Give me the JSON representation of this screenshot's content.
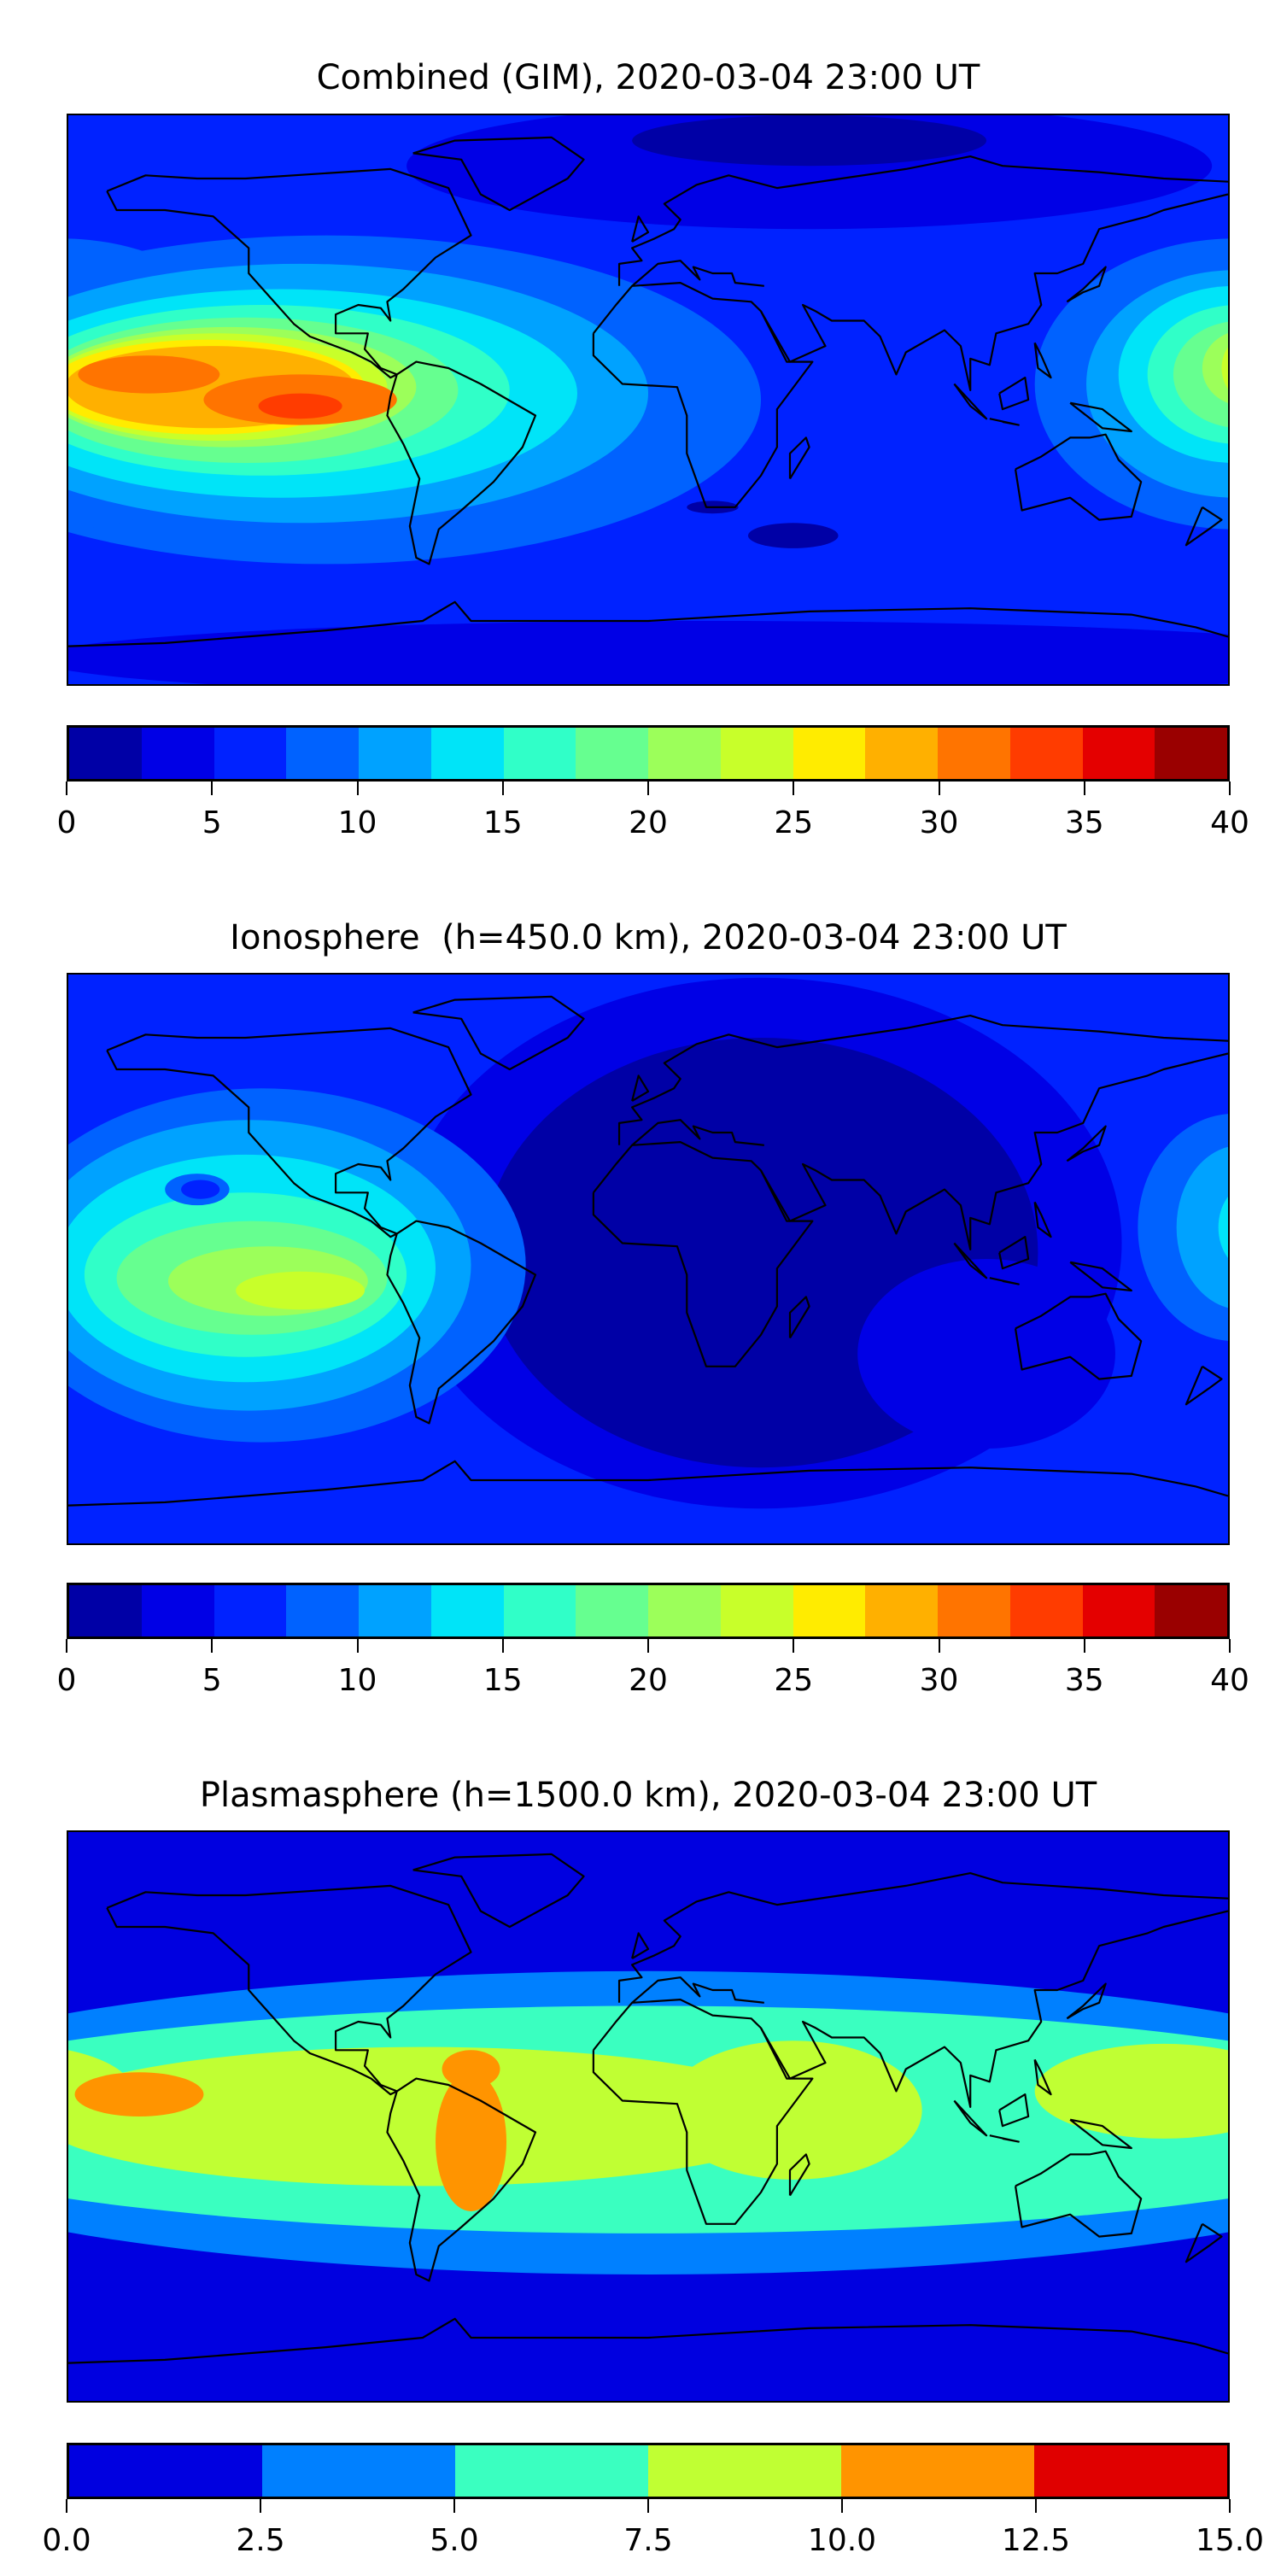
{
  "chart_data": [
    {
      "type": "heatmap",
      "title": "Combined (GIM), 2020-03-04 23:00 UT",
      "projection": "PlateCarree",
      "lon_range": [
        -180,
        180
      ],
      "lat_range": [
        -90,
        90
      ],
      "colorbar": {
        "levels": [
          0,
          2.5,
          5,
          7.5,
          10,
          12.5,
          15,
          17.5,
          20,
          22.5,
          25,
          27.5,
          30,
          32.5,
          35,
          37.5,
          40
        ],
        "colors": [
          "#0000a6",
          "#0000e6",
          "#0022ff",
          "#0062ff",
          "#00a2ff",
          "#00e4f8",
          "#30ffc8",
          "#66ff90",
          "#9cff5a",
          "#c8ff2a",
          "#ffec00",
          "#ffb000",
          "#ff7400",
          "#ff3c00",
          "#e40000",
          "#9a0000"
        ],
        "ticks": [
          "0",
          "5",
          "10",
          "15",
          "20",
          "25",
          "30",
          "35",
          "40"
        ],
        "range": [
          0,
          40
        ]
      },
      "features": "maximum 32.5-35 over eastern Pacific / west of South America; broad 20-30 region over equatorial Pacific; 15-25 at western Pacific edge; 2.5-7.5 over Africa/Eurasia"
    },
    {
      "type": "heatmap",
      "title": "Ionosphere  (h=450.0 km), 2020-03-04 23:00 UT",
      "projection": "PlateCarree",
      "lon_range": [
        -180,
        180
      ],
      "lat_range": [
        -90,
        90
      ],
      "colorbar": {
        "levels": [
          0,
          2.5,
          5,
          7.5,
          10,
          12.5,
          15,
          17.5,
          20,
          22.5,
          25,
          27.5,
          30,
          32.5,
          35,
          37.5,
          40
        ],
        "colors": [
          "#0000a6",
          "#0000e6",
          "#0022ff",
          "#0062ff",
          "#00a2ff",
          "#00e4f8",
          "#30ffc8",
          "#66ff90",
          "#9cff5a",
          "#c8ff2a",
          "#ffec00",
          "#ffb000",
          "#ff7400",
          "#ff3c00",
          "#e40000",
          "#9a0000"
        ],
        "ticks": [
          "0",
          "5",
          "10",
          "15",
          "20",
          "25",
          "30",
          "35",
          "40"
        ],
        "range": [
          0,
          40
        ]
      },
      "features": "maximum 22.5-25 over eastern Pacific; 0-2.5 over Atlantic, Africa and Eurasia"
    },
    {
      "type": "heatmap",
      "title": "Plasmasphere (h=1500.0 km), 2020-03-04 23:00 UT",
      "projection": "PlateCarree",
      "lon_range": [
        -180,
        180
      ],
      "lat_range": [
        -90,
        90
      ],
      "colorbar": {
        "levels": [
          0,
          2.5,
          5,
          7.5,
          10,
          12.5,
          15
        ],
        "colors": [
          "#0000e0",
          "#0080ff",
          "#3affc0",
          "#c0ff33",
          "#ff9400",
          "#e00000"
        ],
        "ticks": [
          "0.0",
          "2.5",
          "5.0",
          "7.5",
          "10.0",
          "12.5",
          "15.0"
        ],
        "range": [
          0,
          15
        ]
      },
      "features": "equatorial band 7.5-10, with 10-12.5 over South America and the central Pacific; 0-2.5 at high latitudes"
    }
  ]
}
